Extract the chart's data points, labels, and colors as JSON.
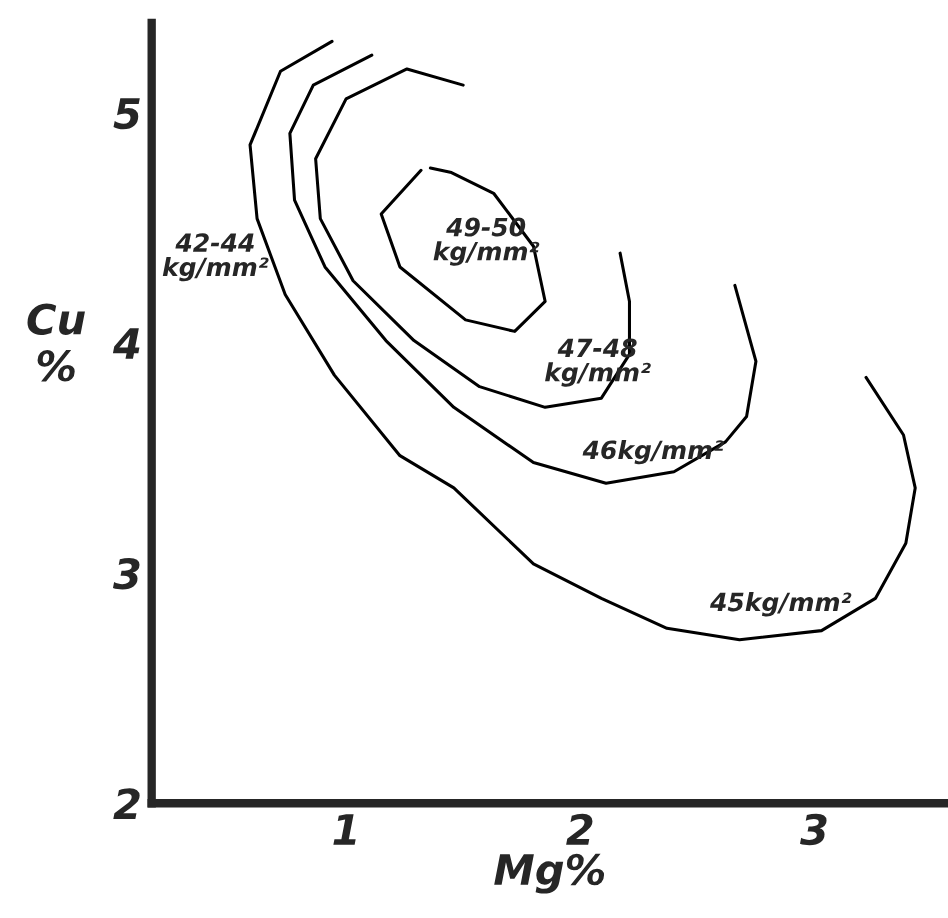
{
  "chart_data": {
    "type": "line",
    "xlabel": "Mg%",
    "ylabel": "Cu\n%",
    "xlim": [
      0.17,
      3.57
    ],
    "ylim": [
      2,
      5.39
    ],
    "xticks": [
      1,
      2,
      3
    ],
    "yticks": [
      2,
      3,
      4,
      5
    ],
    "grid": false,
    "legend": false,
    "marker": "none",
    "line_style": "solid",
    "series": [
      {
        "name": "45kg/mm²",
        "color": "#000000",
        "x": [
          0.94,
          0.72,
          0.59,
          0.62,
          0.74,
          0.95,
          1.23,
          1.46,
          1.8,
          2.09,
          2.37,
          2.68,
          3.03,
          3.26,
          3.39,
          3.43,
          3.38,
          3.22
        ],
        "values": [
          5.31,
          5.18,
          4.86,
          4.54,
          4.21,
          3.86,
          3.51,
          3.37,
          3.04,
          2.89,
          2.76,
          2.71,
          2.75,
          2.89,
          3.13,
          3.37,
          3.6,
          3.85
        ]
      },
      {
        "name": "46kg/mm²",
        "color": "#000000",
        "x": [
          1.11,
          0.86,
          0.76,
          0.78,
          0.91,
          1.17,
          1.46,
          1.8,
          2.11,
          2.4,
          2.62,
          2.71,
          2.75,
          2.66
        ],
        "values": [
          5.25,
          5.12,
          4.91,
          4.62,
          4.33,
          4.01,
          3.72,
          3.48,
          3.39,
          3.44,
          3.57,
          3.68,
          3.92,
          4.25
        ]
      },
      {
        "name": "47-48\nkg/mm²",
        "color": "#000000",
        "x": [
          1.5,
          1.26,
          1.0,
          0.87,
          0.89,
          1.03,
          1.29,
          1.57,
          1.85,
          2.09,
          2.21,
          2.21,
          2.17
        ],
        "values": [
          5.12,
          5.19,
          5.06,
          4.8,
          4.54,
          4.27,
          4.01,
          3.81,
          3.72,
          3.76,
          3.95,
          4.18,
          4.39
        ]
      },
      {
        "name": "49-50\nkg/mm²",
        "color": "#000000",
        "x": [
          1.32,
          1.15,
          1.23,
          1.51,
          1.72,
          1.85,
          1.8,
          1.63,
          1.45,
          1.36
        ],
        "values": [
          4.75,
          4.56,
          4.33,
          4.1,
          4.05,
          4.18,
          4.42,
          4.65,
          4.74,
          4.76
        ]
      }
    ],
    "annotations": [
      "42-44\nkg/mm²"
    ]
  }
}
